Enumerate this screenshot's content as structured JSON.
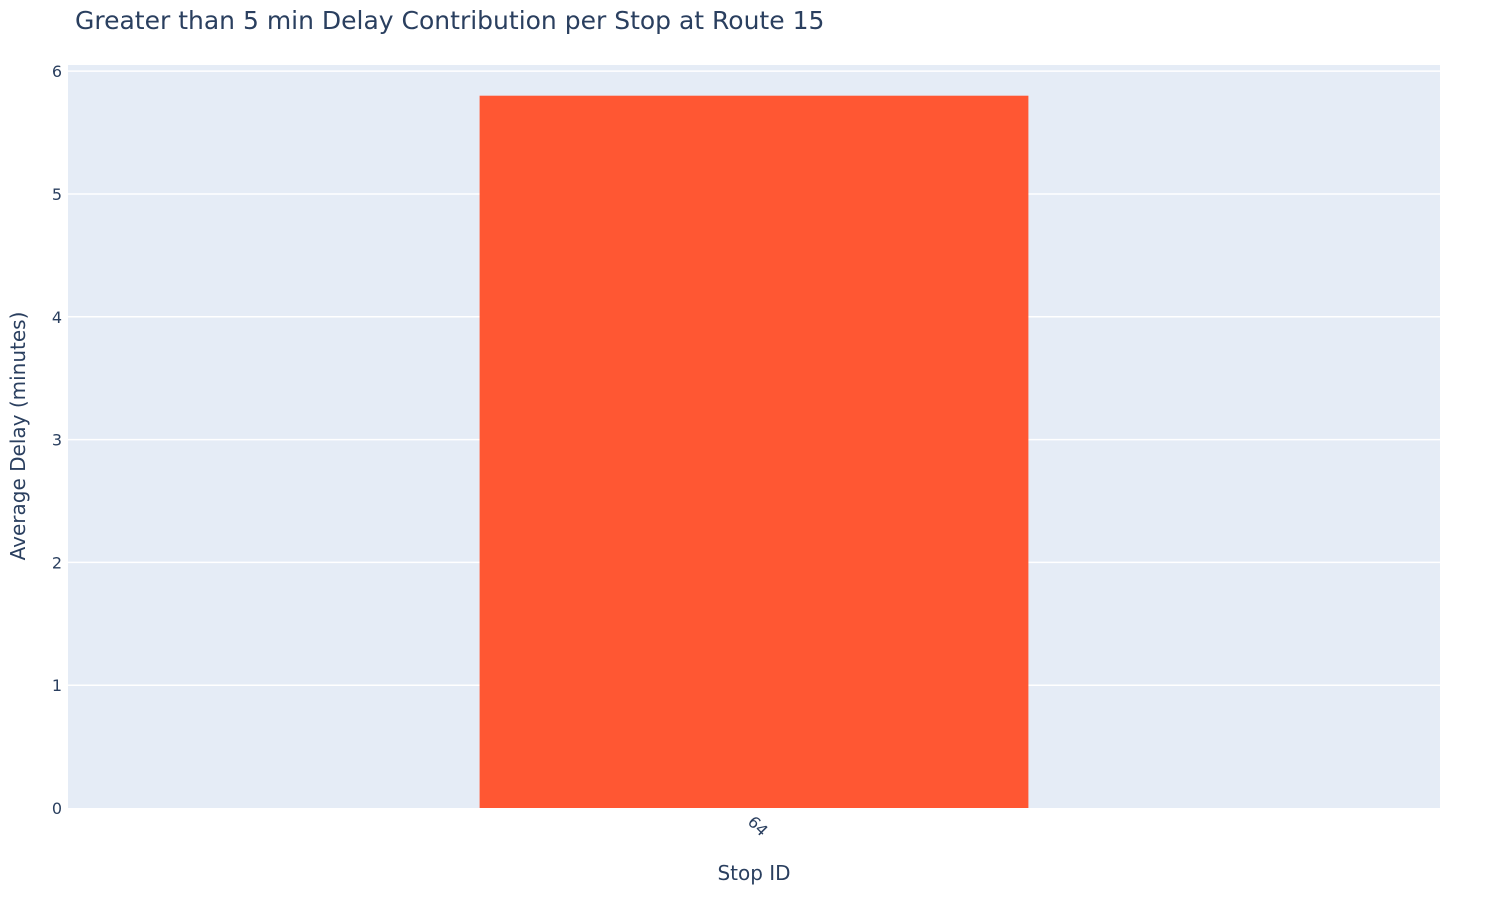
{
  "chart_data": {
    "type": "bar",
    "title": "Greater than 5 min Delay Contribution per Stop at Route 15",
    "xlabel": "Stop ID",
    "ylabel": "Average Delay (minutes)",
    "categories": [
      "64"
    ],
    "values": [
      5.8
    ],
    "ylim": [
      0,
      6.05
    ],
    "yticks": [
      0,
      1,
      2,
      3,
      4,
      5,
      6
    ],
    "grid": true,
    "x_tick_rotation_deg": 45,
    "colors": {
      "bar": "#FF5733",
      "plot_background": "#E5ECF6",
      "gridline": "#FFFFFF",
      "text": "#2A3F5F"
    }
  }
}
